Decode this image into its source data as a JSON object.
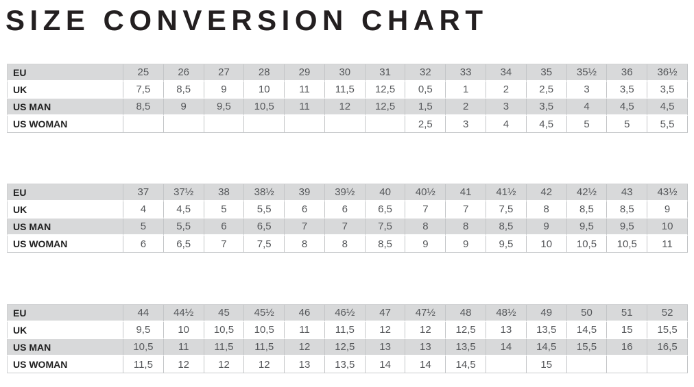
{
  "title": "SIZE CONVERSION CHART",
  "colors": {
    "background": "#ffffff",
    "shaded_row": "#d8d9da",
    "cell_border": "#c3c5c7",
    "label_text": "#212121",
    "value_text": "#55575a",
    "title_text": "#231f20"
  },
  "chart_data": {
    "type": "table",
    "title": "SIZE CONVERSION CHART",
    "row_labels": [
      "EU",
      "UK",
      "US MAN",
      "US WOMAN"
    ],
    "tables": [
      {
        "rows": [
          {
            "label": "EU",
            "values": [
              "25",
              "26",
              "27",
              "28",
              "29",
              "30",
              "31",
              "32",
              "33",
              "34",
              "35",
              "35½",
              "36",
              "36½"
            ]
          },
          {
            "label": "UK",
            "values": [
              "7,5",
              "8,5",
              "9",
              "10",
              "11",
              "11,5",
              "12,5",
              "0,5",
              "1",
              "2",
              "2,5",
              "3",
              "3,5",
              "3,5"
            ]
          },
          {
            "label": "US MAN",
            "values": [
              "8,5",
              "9",
              "9,5",
              "10,5",
              "11",
              "12",
              "12,5",
              "1,5",
              "2",
              "3",
              "3,5",
              "4",
              "4,5",
              "4,5"
            ]
          },
          {
            "label": "US WOMAN",
            "values": [
              "",
              "",
              "",
              "",
              "",
              "",
              "",
              "2,5",
              "3",
              "4",
              "4,5",
              "5",
              "5",
              "5,5"
            ]
          }
        ]
      },
      {
        "rows": [
          {
            "label": "EU",
            "values": [
              "37",
              "37½",
              "38",
              "38½",
              "39",
              "39½",
              "40",
              "40½",
              "41",
              "41½",
              "42",
              "42½",
              "43",
              "43½"
            ]
          },
          {
            "label": "UK",
            "values": [
              "4",
              "4,5",
              "5",
              "5,5",
              "6",
              "6",
              "6,5",
              "7",
              "7",
              "7,5",
              "8",
              "8,5",
              "8,5",
              "9"
            ]
          },
          {
            "label": "US MAN",
            "values": [
              "5",
              "5,5",
              "6",
              "6,5",
              "7",
              "7",
              "7,5",
              "8",
              "8",
              "8,5",
              "9",
              "9,5",
              "9,5",
              "10"
            ]
          },
          {
            "label": "US WOMAN",
            "values": [
              "6",
              "6,5",
              "7",
              "7,5",
              "8",
              "8",
              "8,5",
              "9",
              "9",
              "9,5",
              "10",
              "10,5",
              "10,5",
              "11"
            ]
          }
        ]
      },
      {
        "rows": [
          {
            "label": "EU",
            "values": [
              "44",
              "44½",
              "45",
              "45½",
              "46",
              "46½",
              "47",
              "47½",
              "48",
              "48½",
              "49",
              "50",
              "51",
              "52"
            ]
          },
          {
            "label": "UK",
            "values": [
              "9,5",
              "10",
              "10,5",
              "10,5",
              "11",
              "11,5",
              "12",
              "12",
              "12,5",
              "13",
              "13,5",
              "14,5",
              "15",
              "15,5"
            ]
          },
          {
            "label": "US MAN",
            "values": [
              "10,5",
              "11",
              "11,5",
              "11,5",
              "12",
              "12,5",
              "13",
              "13",
              "13,5",
              "14",
              "14,5",
              "15,5",
              "16",
              "16,5"
            ]
          },
          {
            "label": "US WOMAN",
            "values": [
              "11,5",
              "12",
              "12",
              "12",
              "13",
              "13,5",
              "14",
              "14",
              "14,5",
              "",
              "15",
              "",
              "",
              ""
            ]
          }
        ]
      }
    ]
  }
}
